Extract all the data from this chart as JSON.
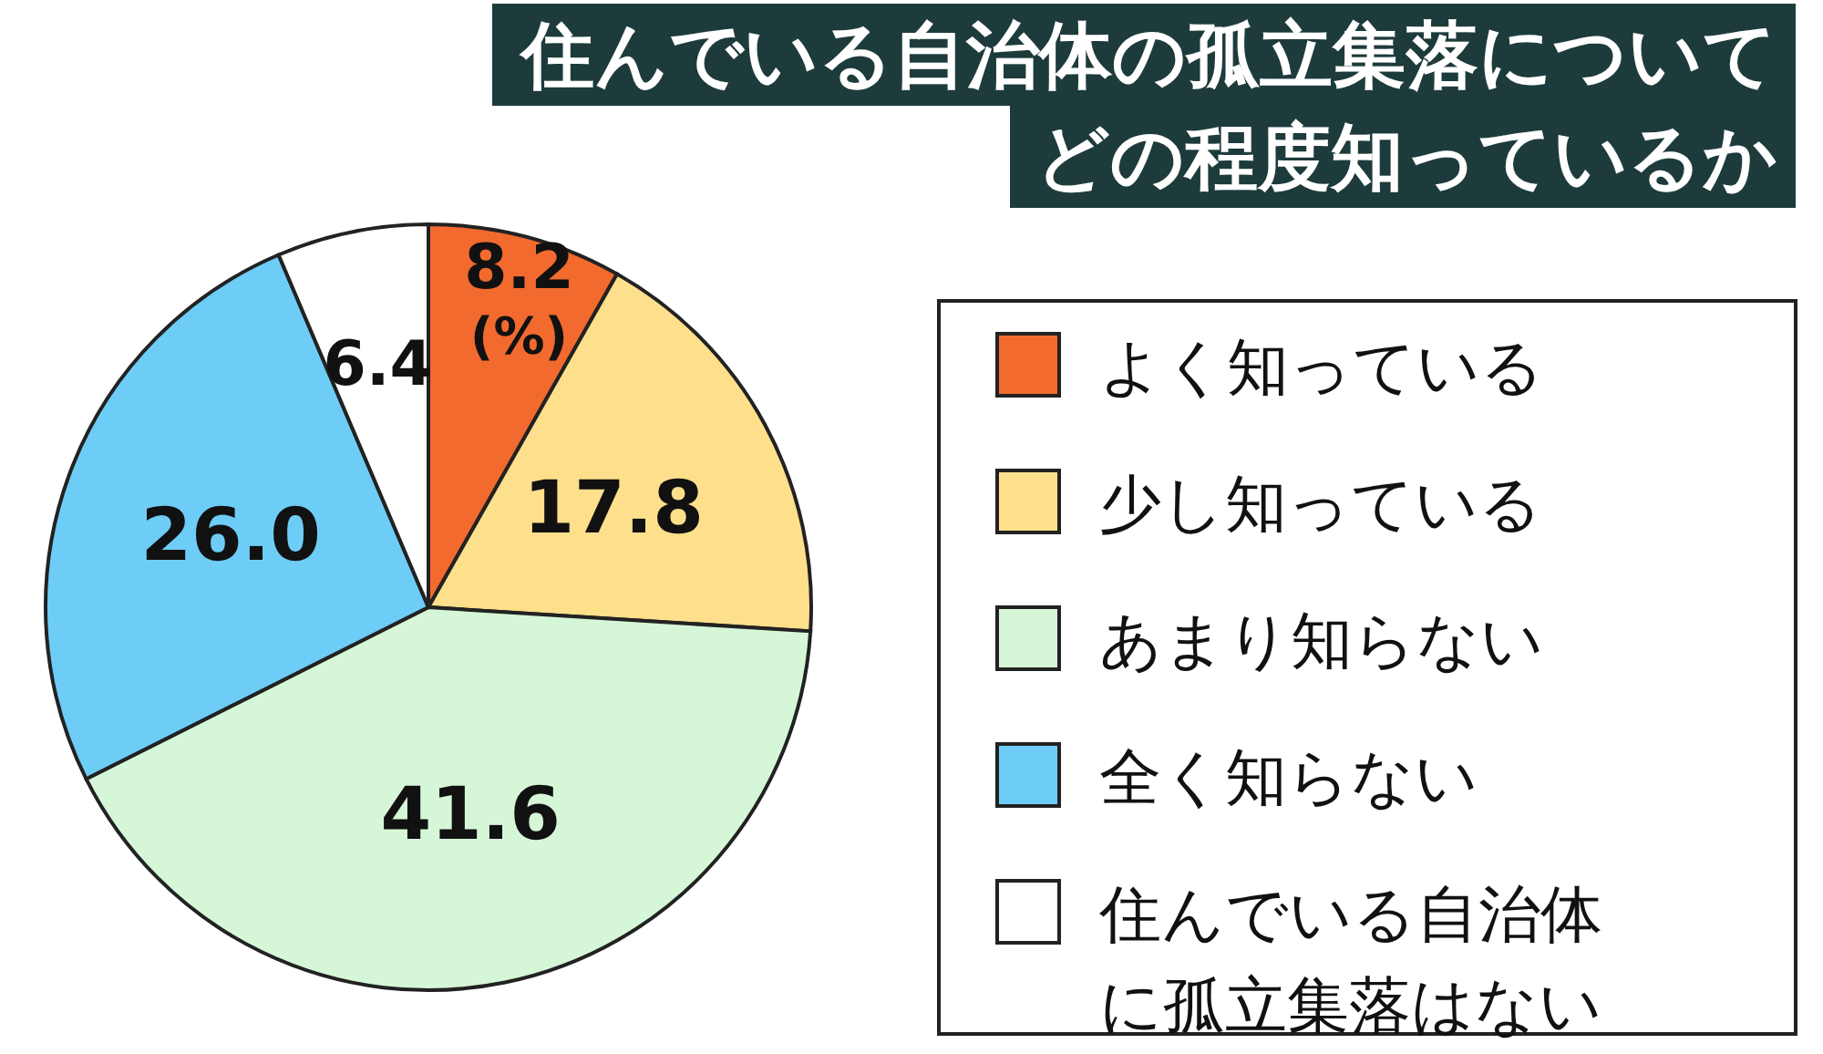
{
  "chart_data": {
    "type": "pie",
    "title": "住んでいる自治体の孤立集落についてどの程度知っているか",
    "categories": [
      "よく知っている",
      "少し知っている",
      "あまり知らない",
      "全く知らない",
      "住んでいる自治体に孤立集落はない"
    ],
    "values": [
      8.2,
      17.8,
      41.6,
      26.0,
      6.4
    ],
    "value_labels": [
      "8.2",
      "17.8",
      "41.6",
      "26.0",
      "6.4"
    ],
    "colors": [
      "#f26a2e",
      "#fddf8c",
      "#d6f6d8",
      "#6ecdf6",
      "#ffffff"
    ],
    "annotations": [
      "(%)"
    ],
    "legend": "right"
  }
}
